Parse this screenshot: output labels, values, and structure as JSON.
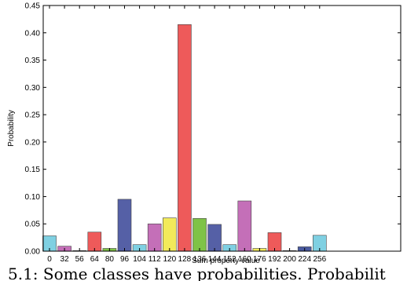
{
  "chart_data": {
    "type": "bar",
    "categories": [
      "0",
      "32",
      "56",
      "64",
      "80",
      "96",
      "104",
      "112",
      "120",
      "128",
      "136",
      "144",
      "152",
      "160",
      "176",
      "192",
      "200",
      "224",
      "256"
    ],
    "values": [
      0.028,
      0.009,
      0.001,
      0.035,
      0.005,
      0.095,
      0.012,
      0.05,
      0.061,
      0.415,
      0.06,
      0.049,
      0.012,
      0.092,
      0.005,
      0.034,
      0.001,
      0.008,
      0.029
    ],
    "colors": [
      "#7fd0e2",
      "#c46fb8",
      "#e35a5a",
      "#ee5a5a",
      "#7fc347",
      "#5560a6",
      "#7fd0e2",
      "#c46fb8",
      "#f2ea5a",
      "#ee5a5a",
      "#7fc347",
      "#5560a6",
      "#7fd0e2",
      "#c46fb8",
      "#f2ea5a",
      "#ee5a5a",
      "#7fc347",
      "#4a5aa0",
      "#7fd0e2"
    ],
    "xlabel": "Sum property value",
    "ylabel": "Probability",
    "ylim": [
      0,
      0.45
    ],
    "yticks": [
      "0.00",
      "0.05",
      "0.10",
      "0.15",
      "0.20",
      "0.25",
      "0.30",
      "0.35",
      "0.40",
      "0.45"
    ],
    "grid": false
  },
  "caption": "5.1: Some classes have probabilities. Probabilit"
}
